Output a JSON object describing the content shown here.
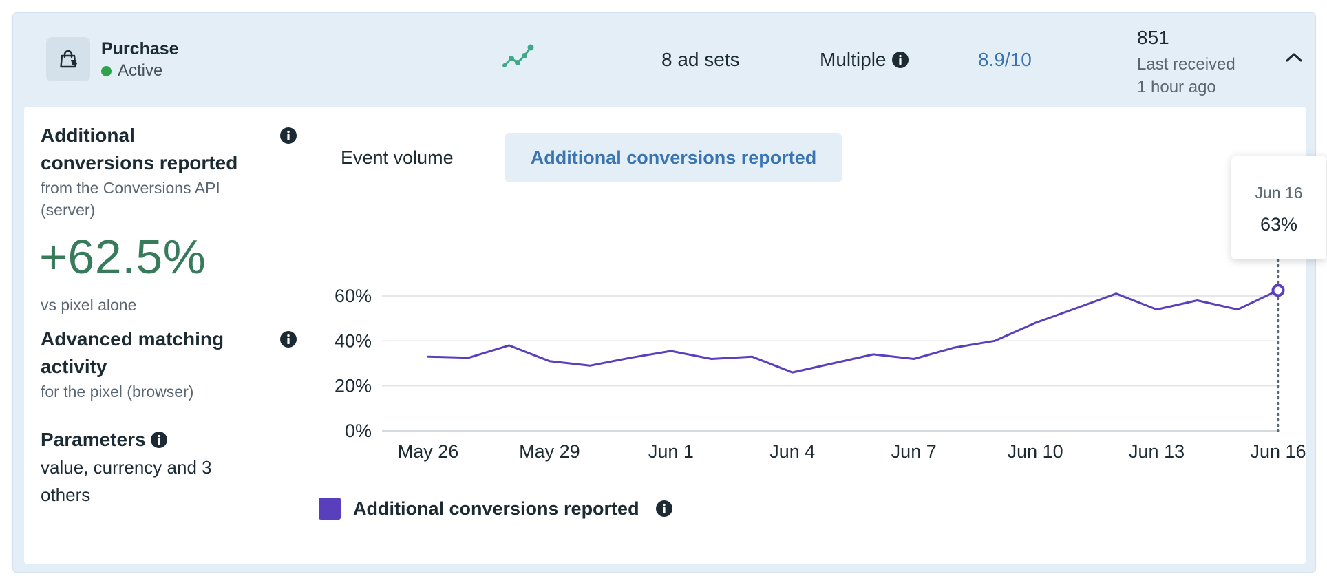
{
  "header": {
    "event_name": "Purchase",
    "status": "Active",
    "ad_sets": "8 ad sets",
    "integration": "Multiple",
    "match_score": "8.9/10",
    "event_count": "851",
    "last_received_label": "Last received",
    "last_received_time": "1 hour ago"
  },
  "left_panel": {
    "additional_title": "Additional conversions reported",
    "additional_title_line1": "Additional",
    "additional_title_line2": "conversions reported",
    "additional_sub_line1": "from the Conversions API",
    "additional_sub_line2": "(server)",
    "additional_value": "+62.5%",
    "additional_value_sub": "vs pixel alone",
    "matching_title_line1": "Advanced matching",
    "matching_title_line2": "activity",
    "matching_sub": "for the pixel (browser)",
    "parameters_title": "Parameters",
    "parameters_line1": "value, currency and 3",
    "parameters_line2": "others"
  },
  "tabs": {
    "event_volume": "Event volume",
    "additional_conversions": "Additional conversions reported"
  },
  "tooltip": {
    "date": "Jun 16",
    "value": "63%"
  },
  "colors": {
    "line": "#5a3fbd",
    "accent_blue": "#3b75b1",
    "positive_green": "#387a5c",
    "active_green": "#31a24c"
  },
  "chart_data": {
    "type": "line",
    "title": "Additional conversions reported",
    "xlabel": "",
    "ylabel": "",
    "ylim": [
      0,
      60
    ],
    "yticks": [
      "0%",
      "20%",
      "40%",
      "60%"
    ],
    "ytick_values": [
      0,
      20,
      40,
      60
    ],
    "xtick_labels": [
      "May 26",
      "May 29",
      "Jun 1",
      "Jun 4",
      "Jun 7",
      "Jun 10",
      "Jun 13",
      "Jun 16"
    ],
    "xtick_indices": [
      0,
      3,
      6,
      9,
      12,
      15,
      18,
      21
    ],
    "series": [
      {
        "name": "Additional conversions reported",
        "values": [
          33,
          32.5,
          38,
          31,
          29,
          32.5,
          35.5,
          32,
          33,
          26,
          30,
          34,
          32,
          37,
          40,
          48,
          54.5,
          61,
          54,
          58,
          54,
          62.5
        ]
      }
    ],
    "highlight_index": 21,
    "legend": "bottom-left"
  }
}
